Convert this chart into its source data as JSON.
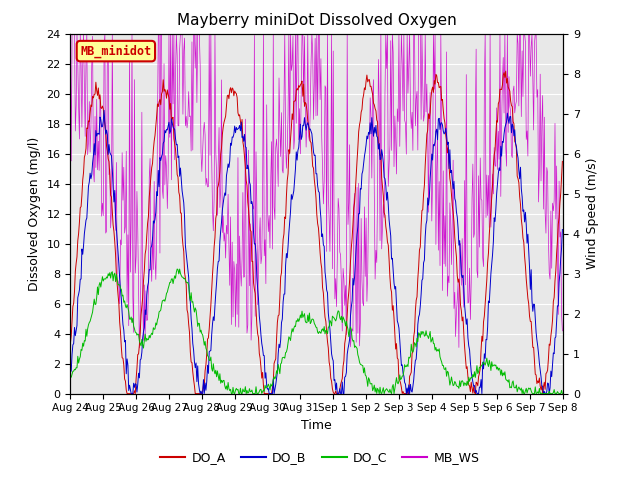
{
  "title": "Mayberry miniDot Dissolved Oxygen",
  "ylabel_left": "Dissolved Oxygen (mg/l)",
  "ylabel_right": "Wind Speed (m/s)",
  "xlabel": "Time",
  "ylim_left": [
    0,
    24
  ],
  "ylim_right": [
    0.0,
    9.0
  ],
  "yticks_left": [
    0,
    2,
    4,
    6,
    8,
    10,
    12,
    14,
    16,
    18,
    20,
    22,
    24
  ],
  "yticks_right": [
    0.0,
    1.0,
    2.0,
    3.0,
    4.0,
    5.0,
    6.0,
    7.0,
    8.0,
    9.0
  ],
  "bg_color": "#e8e8e8",
  "line_colors": {
    "DO_A": "#cc0000",
    "DO_B": "#0000cc",
    "DO_C": "#00bb00",
    "MB_WS": "#cc00cc"
  },
  "legend_label": "MB_minidot",
  "legend_bg": "#ffff99",
  "legend_edge": "#cc0000",
  "n_points": 600
}
